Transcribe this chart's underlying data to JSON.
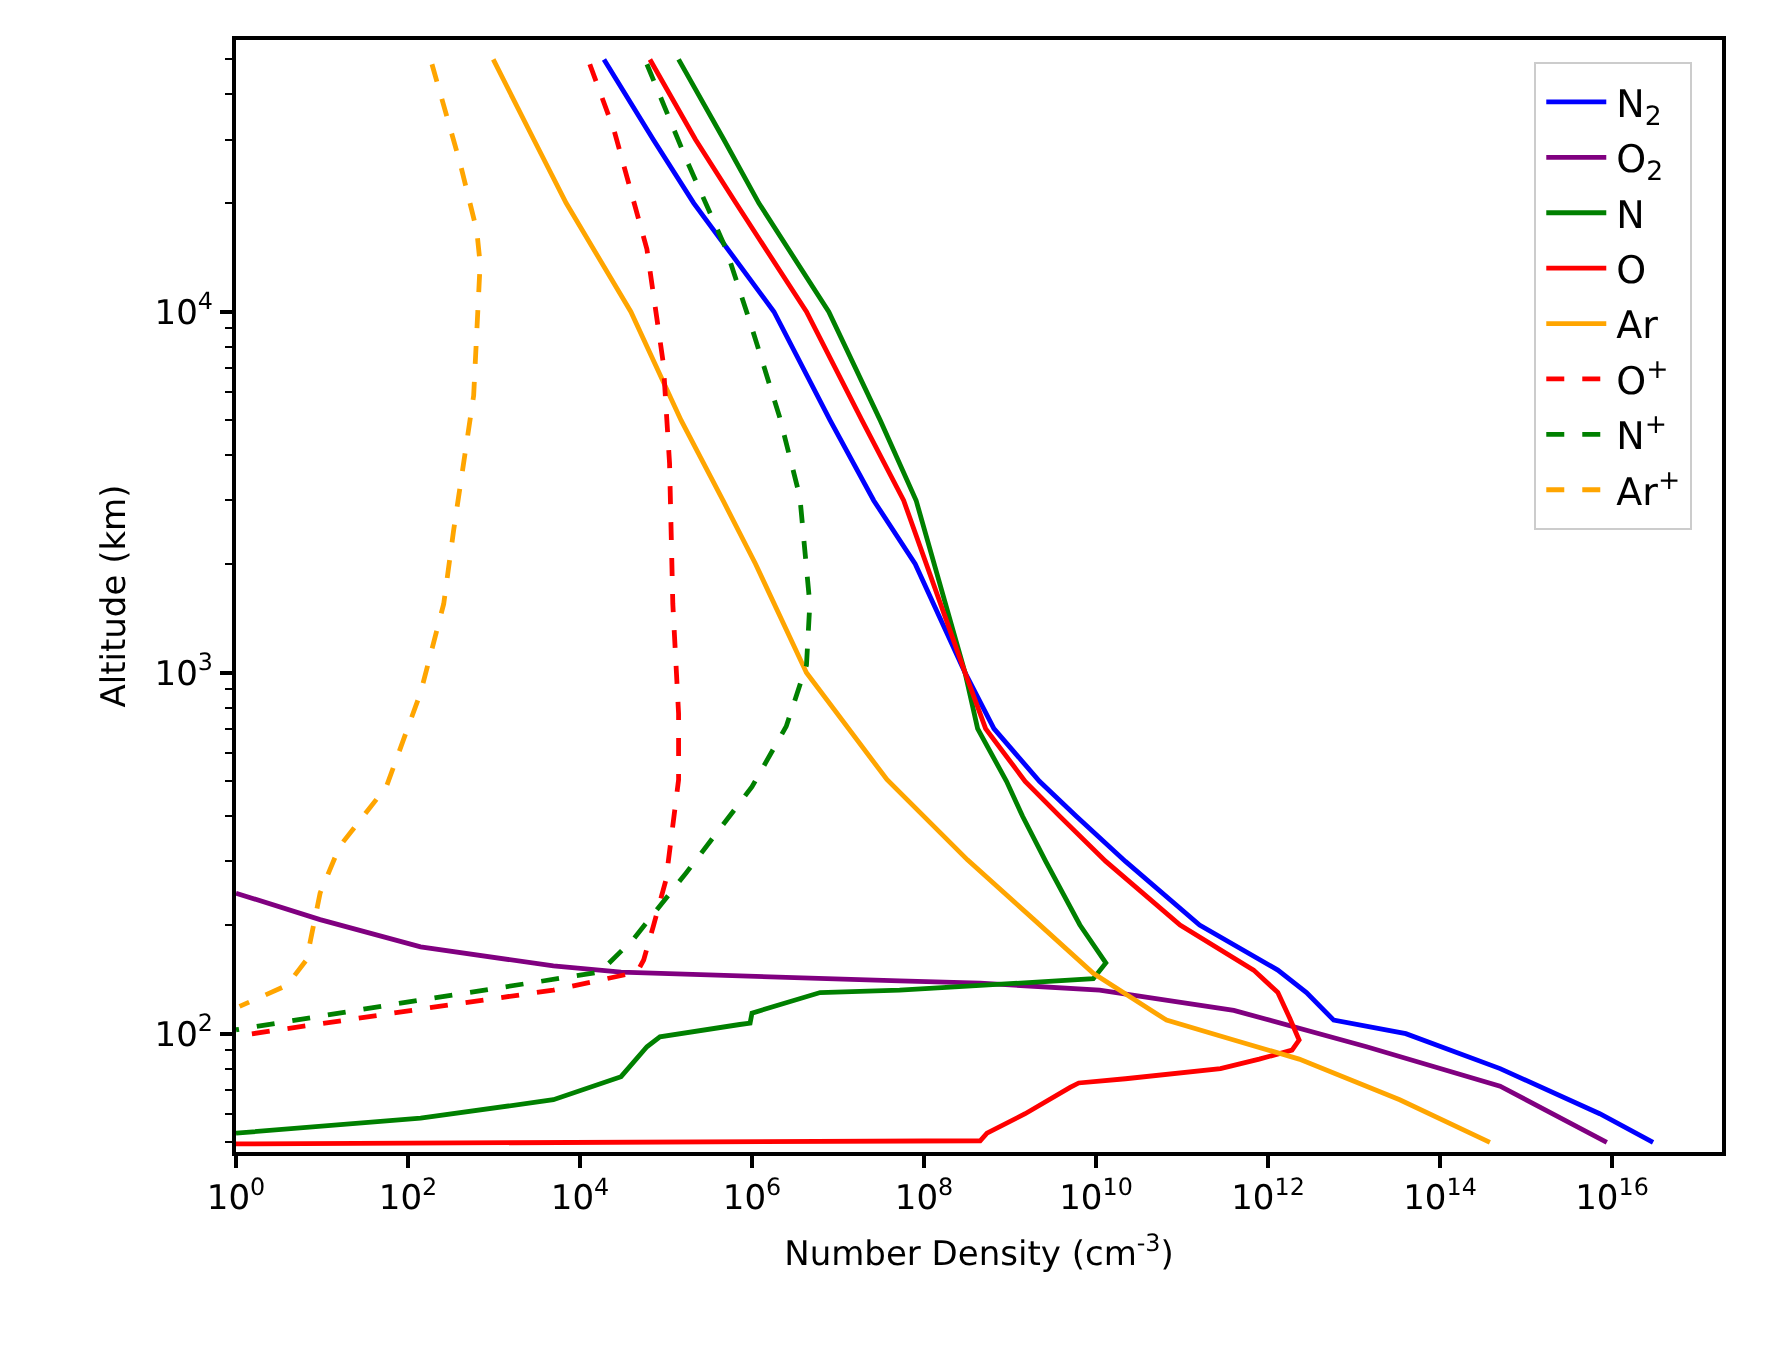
{
  "chart_data": {
    "type": "line",
    "xlabel": "Number Density (cm$^{-3}$)",
    "ylabel": "Altitude (km)",
    "log": "xy",
    "grid": false,
    "legend": "top right",
    "xlim": [
      1,
      1.9e+17
    ],
    "ylim": [
      47,
      56600
    ],
    "xticks": [
      {
        "value": 1,
        "label": "10$^{0}$"
      },
      {
        "value": 100.0,
        "label": "10$^{2}$"
      },
      {
        "value": 10000.0,
        "label": "10$^{4}$"
      },
      {
        "value": 1000000.0,
        "label": "10$^{6}$"
      },
      {
        "value": 100000000.0,
        "label": "10$^{8}$"
      },
      {
        "value": 10000000000.0,
        "label": "10$^{10}$"
      },
      {
        "value": 1000000000000.0,
        "label": "10$^{12}$"
      },
      {
        "value": 100000000000000.0,
        "label": "10$^{14}$"
      },
      {
        "value": 1e+16,
        "label": "10$^{16}$"
      }
    ],
    "yticks": [
      {
        "value": 100,
        "label": "10$^{2}$"
      },
      {
        "value": 1000,
        "label": "10$^{3}$"
      },
      {
        "value": 10000,
        "label": "10$^{4}$"
      }
    ],
    "series": [
      {
        "name": "N$_{2}$",
        "color": "#0000ff",
        "line_style": "solid",
        "x": [
          19000.0,
          71000.0,
          210000.0,
          1800000.0,
          8100000.0,
          26000000.0,
          79000000.0,
          300000000.0,
          650000000.0,
          2200000000.0,
          5900000000.0,
          22000000000.0,
          160000000000.0,
          1300000000000.0,
          2800000000000.0,
          5800000000000.0,
          40000000000000.0,
          500000000000000.0,
          7200000000000000.0,
          3e+16
        ],
        "values": [
          50000,
          30000,
          20000,
          10000,
          5000,
          3000,
          2000,
          1000,
          700,
          500,
          400,
          300,
          200,
          150,
          130,
          109,
          100,
          80,
          60,
          50
        ]
      },
      {
        "name": "O$_{2}$",
        "color": "#800080",
        "line_style": "solid",
        "x": [
          1,
          9.5,
          140.0,
          4900.0,
          30000.0,
          52000000.0,
          450000000.0,
          11000000000.0,
          400000000000.0,
          14000000000000.0,
          500000000000000.0,
          8700000000000000.0
        ],
        "values": [
          245,
          207,
          174,
          154,
          148,
          140,
          138,
          132,
          116,
          92,
          71.5,
          50
        ]
      },
      {
        "name": "N",
        "color": "#008000",
        "line_style": "solid",
        "x": [
          140000.0,
          470000.0,
          1200000.0,
          7800000.0,
          31000000.0,
          81000000.0,
          300000000.0,
          420000000.0,
          910000000.0,
          1400000000.0,
          2600000000.0,
          6500000000.0,
          13000000000.0,
          9300000000.0,
          450000000.0,
          52000000.0,
          6200000.0,
          1000000.0,
          950000.0,
          720000.0,
          85000.0,
          60000.0,
          30000.0,
          4900.0,
          140.0,
          1
        ],
        "values": [
          50000,
          30000,
          20000,
          10000,
          5000,
          3000,
          1000,
          700,
          500,
          400,
          300,
          200,
          157,
          142,
          136,
          132,
          130,
          114,
          107,
          106,
          98,
          92,
          76,
          65.6,
          58.3,
          53
        ]
      },
      {
        "name": "O",
        "color": "#ff0000",
        "line_style": "solid",
        "x": [
          65000.0,
          220000.0,
          650000.0,
          4300000.0,
          19000000.0,
          58000000.0,
          300000000.0,
          520000000.0,
          1500000000.0,
          3800000000.0,
          13000000000.0,
          95000000000.0,
          680000000000.0,
          1300000000000.0,
          1800000000000.0,
          2300000000000.0,
          1900000000000.0,
          790000000000.0,
          280000000000.0,
          22000000000.0,
          6300000000.0,
          5000000000.0,
          1500000000.0,
          540000000.0,
          450000000.0,
          1
        ],
        "values": [
          50000,
          30000,
          20000,
          10000,
          5000,
          3000,
          1000,
          700,
          500,
          400,
          300,
          200,
          150,
          130,
          110,
          96,
          90,
          85,
          80,
          75,
          73,
          71,
          60,
          53,
          50.5,
          49.5
        ]
      },
      {
        "name": "Ar",
        "color": "#ffa500",
        "line_style": "solid",
        "x": [
          980.0,
          2900.0,
          6900.0,
          39000.0,
          150000.0,
          460000.0,
          1100000.0,
          4300000.0,
          37000000.0,
          320000000.0,
          1900000000.0,
          9300000000.0,
          66000000000.0,
          400000000000.0,
          2300000000000.0,
          34000000000000.0,
          380000000000000.0
        ],
        "values": [
          50000,
          30000,
          20000,
          10000,
          5000,
          3000,
          2000,
          1000,
          506,
          303,
          207,
          147,
          109,
          96,
          85,
          65.6,
          50
        ]
      },
      {
        "name": "O$^{+}$",
        "color": "#ff0000",
        "line_style": "dashed",
        "x": [
          13000.0,
          25000.0,
          60000.0,
          93000.0,
          110000.0,
          120000.0,
          140000.0,
          140000.0,
          100000.0,
          71000.0,
          55000.0,
          46000.0,
          4900.0,
          140.0,
          1
        ],
        "values": [
          48500,
          31700,
          14900,
          7200,
          3800,
          1550,
          770,
          505,
          267,
          198,
          160,
          148,
          132,
          117,
          98.4
        ]
      },
      {
        "name": "N$^{+}$",
        "color": "#008000",
        "line_style": "dashed",
        "x": [
          60000.0,
          170000.0,
          500000.0,
          1000000.0,
          2100000.0,
          3600000.0,
          4700000.0,
          4300000.0,
          2500000.0,
          1000000.0,
          170000.0,
          42000.0,
          17000.0,
          140.0,
          1
        ],
        "values": [
          48500,
          26600,
          14900,
          9000,
          5100,
          3070,
          1550,
          1050,
          710,
          483,
          278,
          183,
          148,
          124,
          102.5
        ]
      },
      {
        "name": "Ar$^{+}$",
        "color": "#ffa500",
        "line_style": "dashed",
        "x": [
          190.0,
          400.0,
          630.0,
          690.0,
          580.0,
          340.0,
          260.0,
          140.0,
          56,
          16,
          9.5,
          6.6,
          3.9,
          1.1
        ],
        "values": [
          48500,
          26000,
          16800,
          13600,
          5860,
          2490,
          1550,
          880,
          483,
          330,
          245,
          160,
          136,
          119
        ]
      }
    ]
  }
}
